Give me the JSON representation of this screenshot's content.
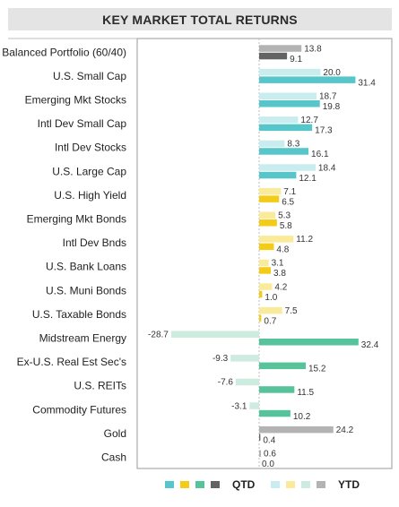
{
  "title": "KEY MARKET TOTAL RETURNS",
  "chart_data": {
    "type": "bar",
    "orientation": "horizontal",
    "title": "KEY MARKET TOTAL RETURNS",
    "categories": [
      "Balanced Portfolio (60/40)",
      "U.S. Small Cap",
      "Emerging Mkt Stocks",
      "Intl Dev Small Cap",
      "Intl Dev Stocks",
      "U.S. Large Cap",
      "U.S. High Yield",
      "Emerging Mkt Bonds",
      "Intl Dev Bnds",
      "U.S. Bank Loans",
      "U.S. Muni Bonds",
      "U.S. Taxable Bonds",
      "Midstream Energy",
      "Ex-U.S. Real Est Sec's",
      "U.S. REITs",
      "Commodity Futures",
      "Gold",
      "Cash"
    ],
    "series": [
      {
        "name": "YTD",
        "values": [
          13.8,
          20.0,
          18.7,
          12.7,
          8.3,
          18.4,
          7.1,
          5.3,
          11.2,
          3.1,
          4.2,
          7.5,
          -28.7,
          -9.3,
          -7.6,
          -3.1,
          24.2,
          0.6
        ]
      },
      {
        "name": "QTD",
        "values": [
          9.1,
          31.4,
          19.8,
          17.3,
          16.1,
          12.1,
          6.5,
          5.8,
          4.8,
          3.8,
          1.0,
          0.7,
          32.4,
          15.2,
          11.5,
          10.2,
          0.4,
          0.0
        ]
      }
    ],
    "value_labels": {
      "YTD": [
        "13.8",
        "20.0",
        "18.7",
        "12.7",
        "8.3",
        "18.4",
        "7.1",
        "5.3",
        "11.2",
        "3.1",
        "4.2",
        "7.5",
        "-28.7",
        "-9.3",
        "-7.6",
        "-3.1",
        "24.2",
        "0.6"
      ],
      "QTD": [
        "9.1",
        "31.4",
        "19.8",
        "17.3",
        "16.1",
        "12.1",
        "6.5",
        "5.8",
        "4.8",
        "3.8",
        "1.0",
        "0.7",
        "32.4",
        "15.2",
        "11.5",
        "10.2",
        "0.4",
        "0.0"
      ]
    },
    "groups": [
      "gray",
      "teal",
      "teal",
      "teal",
      "teal",
      "teal",
      "yellow",
      "yellow",
      "yellow",
      "yellow",
      "yellow",
      "yellow",
      "green",
      "green",
      "green",
      "green",
      "gray",
      "gray"
    ],
    "colors": {
      "QTD": {
        "teal": "#56c6cb",
        "yellow": "#f4cc17",
        "green": "#57c39a",
        "gray": "#636363"
      },
      "YTD": {
        "teal": "#c9ecef",
        "yellow": "#faeb9b",
        "green": "#cdebdf",
        "gray": "#b3b3b3"
      }
    },
    "xlim": [
      -35,
      35
    ],
    "grid": false,
    "legend": {
      "position": "bottom",
      "QTD_label": "QTD",
      "YTD_label": "YTD",
      "QTD_swatches": [
        "#56c6cb",
        "#f4cc17",
        "#57c39a",
        "#636363"
      ],
      "YTD_swatches": [
        "#c9ecef",
        "#faeb9b",
        "#cdebdf",
        "#b3b3b3"
      ]
    }
  }
}
